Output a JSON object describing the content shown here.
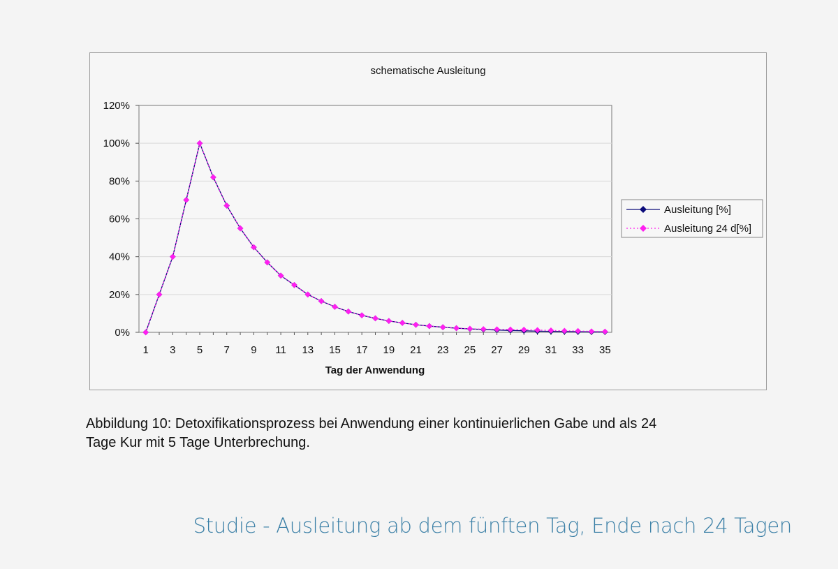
{
  "chart_data": {
    "type": "line",
    "title": "schematische Ausleitung",
    "xlabel": "Tag der Anwendung",
    "ylabel": "",
    "x": [
      1,
      2,
      3,
      4,
      5,
      6,
      7,
      8,
      9,
      10,
      11,
      12,
      13,
      14,
      15,
      16,
      17,
      18,
      19,
      20,
      21,
      22,
      23,
      24,
      25,
      26,
      27,
      28,
      29,
      30,
      31,
      32,
      33,
      34,
      35
    ],
    "x_tick_labels": [
      "1",
      "3",
      "5",
      "7",
      "9",
      "11",
      "13",
      "15",
      "17",
      "19",
      "21",
      "23",
      "25",
      "27",
      "29",
      "31",
      "33",
      "35"
    ],
    "y_tick_labels": [
      "0%",
      "20%",
      "40%",
      "60%",
      "80%",
      "100%",
      "120%"
    ],
    "ylim": [
      0,
      120
    ],
    "grid": "horizontal",
    "legend_position": "right",
    "series": [
      {
        "name": "Ausleitung [%]",
        "color": "#0b0b7a",
        "style": "solid",
        "marker": "diamond",
        "values": [
          0,
          20,
          40,
          70,
          100,
          82,
          67,
          55,
          45,
          37,
          30,
          25,
          20,
          16.5,
          13.5,
          11,
          9,
          7.4,
          6,
          5,
          4,
          3.3,
          2.7,
          2.2,
          1.8,
          1.5,
          1.2,
          1,
          0.8,
          0.6,
          0.5,
          0.4,
          0.3,
          0.2,
          0.2
        ]
      },
      {
        "name": "Ausleitung 24 d[%]",
        "color": "#ff1ff0",
        "style": "dotted",
        "marker": "diamond",
        "values": [
          0,
          20,
          40,
          70,
          100,
          82,
          67,
          55,
          45,
          37,
          30,
          25,
          20,
          16.5,
          13.5,
          11,
          9,
          7.4,
          6,
          5,
          4,
          3.3,
          2.7,
          2.2,
          1.9,
          1.7,
          1.6,
          1.5,
          1.4,
          1.2,
          1.0,
          0.8,
          0.7,
          0.5,
          0.4
        ]
      }
    ]
  },
  "caption": {
    "line1": "Abbildung 10: Detoxifikationsprozess bei Anwendung einer kontinuierlichen Gabe und als 24",
    "line2": "Tage Kur mit 5 Tage Unterbrechung."
  },
  "footer": {
    "title": "Studie - Ausleitung ab dem fünften Tag, Ende nach 24 Tagen"
  }
}
